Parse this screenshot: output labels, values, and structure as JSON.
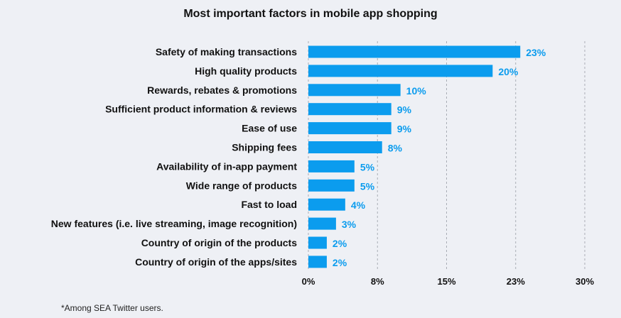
{
  "chart_data": {
    "type": "bar",
    "orientation": "horizontal",
    "title": "Most important factors in mobile app shopping",
    "categories": [
      "Safety of making transactions",
      "High quality products",
      "Rewards, rebates & promotions",
      "Sufficient product information & reviews",
      "Ease of use",
      "Shipping fees",
      "Availability of in-app payment",
      "Wide range of products",
      "Fast to load",
      "New features (i.e. live streaming, image recognition)",
      "Country of origin of the products ",
      "Country of origin of the apps/sites"
    ],
    "values": [
      23,
      20,
      10,
      9,
      9,
      8,
      5,
      5,
      4,
      3,
      2,
      2
    ],
    "value_labels": [
      "23%",
      "20%",
      "10%",
      "9%",
      "9%",
      "8%",
      "5%",
      "5%",
      "4%",
      "3%",
      "2%",
      "2%"
    ],
    "xlim": [
      0,
      30
    ],
    "x_ticks": [
      0,
      7.5,
      15,
      22.5,
      30
    ],
    "x_tick_labels": [
      "0%",
      "8%",
      "15%",
      "23%",
      "30%"
    ],
    "xlabel": "",
    "ylabel": "",
    "grid": true,
    "legend": "none",
    "colors": {
      "bar": "#0b9cee",
      "value_label": "#0b9cee",
      "grid": "#a9adb5",
      "background": "#eef0f5"
    }
  },
  "footnote": "*Among SEA Twitter users."
}
